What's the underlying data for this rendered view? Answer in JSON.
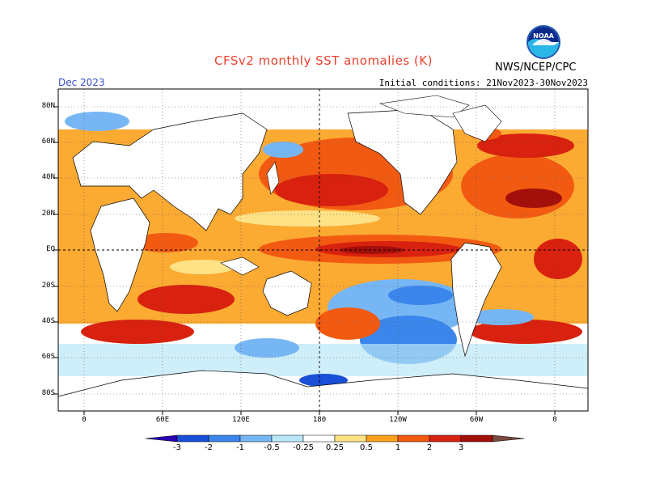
{
  "header": {
    "title": "CFSv2 monthly SST anomalies (K)",
    "month": "Dec 2023",
    "initial_conditions": "Initial conditions: 21Nov2023-30Nov2023",
    "agency": "NWS/NCEP/CPC",
    "logo_text": "NOAA"
  },
  "axes": {
    "lat_labels": [
      "80N",
      "60N",
      "40N",
      "20N",
      "EQ",
      "20S",
      "40S",
      "60S",
      "80S"
    ],
    "lon_labels": [
      "0",
      "60E",
      "120E",
      "180",
      "120W",
      "60W",
      "0"
    ]
  },
  "colorbar": {
    "labels": [
      "-3",
      "-2",
      "-1",
      "-0.5",
      "-0.25",
      "0.25",
      "0.5",
      "1",
      "2",
      "3"
    ],
    "colors": [
      "#2a00b0",
      "#1a4fd8",
      "#3b86ec",
      "#77b6f4",
      "#b9e7f8",
      "#ffffff",
      "#fde286",
      "#fba11c",
      "#f25a12",
      "#d8210e",
      "#a30f0a",
      "#7a4a3e"
    ]
  }
}
